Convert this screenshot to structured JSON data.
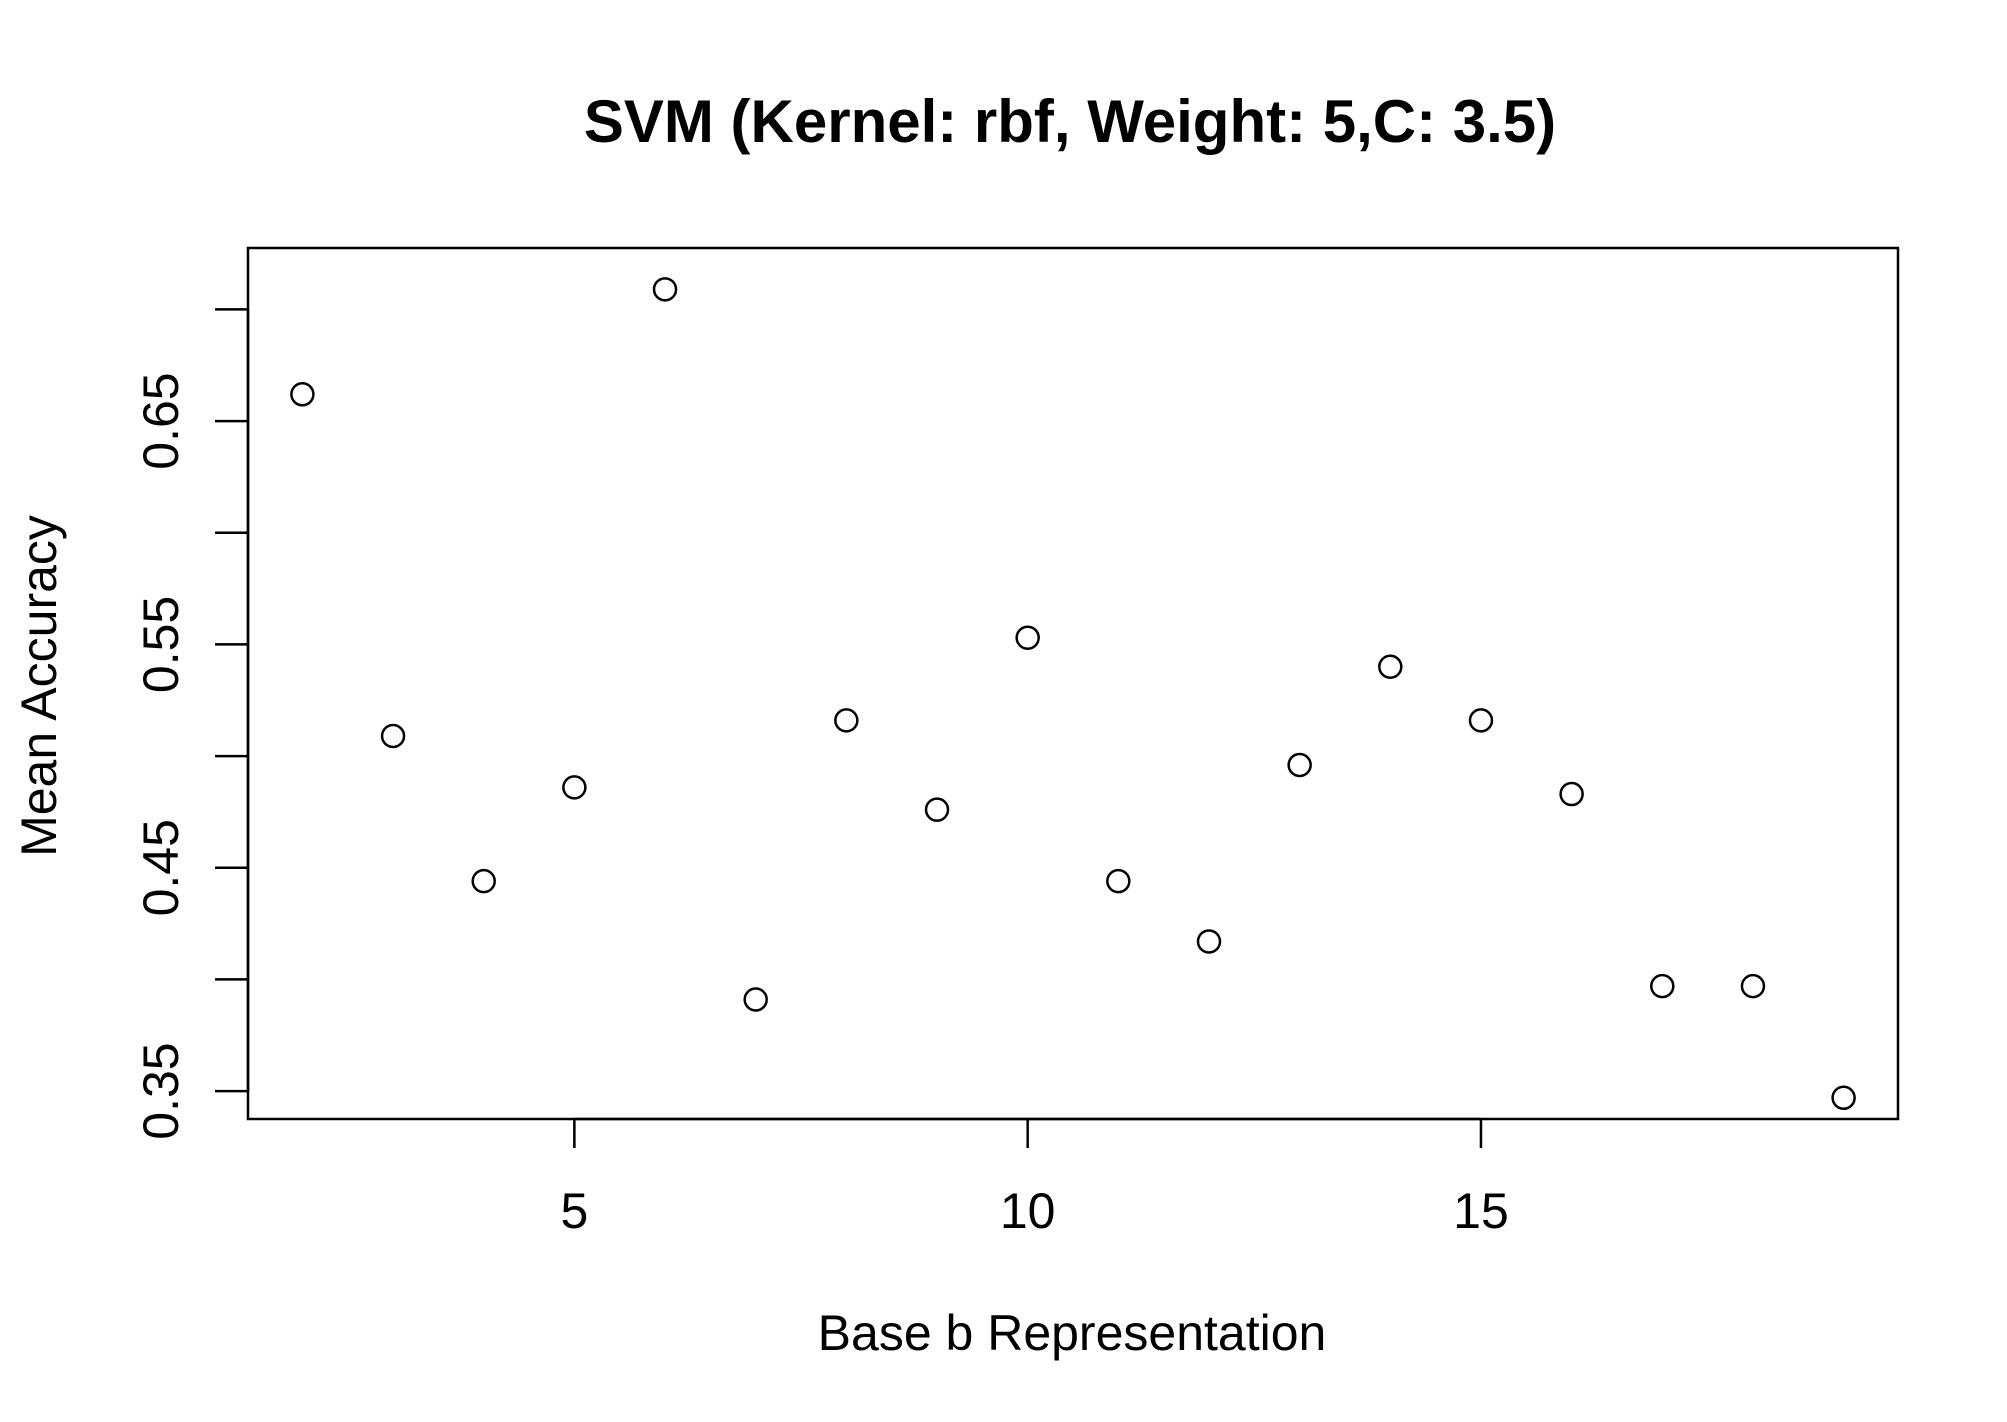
{
  "chart_data": {
    "type": "scatter",
    "title": "SVM (Kernel: rbf, Weight: 5,C: 3.5)",
    "xlabel": "Base b Representation",
    "ylabel": "Mean Accuracy",
    "xlim": [
      1.4,
      19.6
    ],
    "ylim": [
      0.3375,
      0.7275
    ],
    "x_ticks": [
      5,
      10,
      15
    ],
    "x_tick_labels": [
      "5",
      "10",
      "15"
    ],
    "y_ticks": [
      0.35,
      0.4,
      0.45,
      0.5,
      0.55,
      0.6,
      0.65,
      0.7
    ],
    "y_tick_labels": [
      "0.35",
      "",
      "0.45",
      "",
      "0.55",
      "",
      "0.65",
      ""
    ],
    "grid": false,
    "marker": "open-circle",
    "color": "#000000",
    "x": [
      2,
      3,
      4,
      5,
      6,
      7,
      8,
      9,
      10,
      11,
      12,
      13,
      14,
      15,
      16,
      17,
      18,
      19
    ],
    "y": [
      0.662,
      0.509,
      0.444,
      0.486,
      0.709,
      0.391,
      0.516,
      0.476,
      0.553,
      0.444,
      0.417,
      0.496,
      0.54,
      0.516,
      0.483,
      0.397,
      0.397,
      0.347
    ]
  }
}
